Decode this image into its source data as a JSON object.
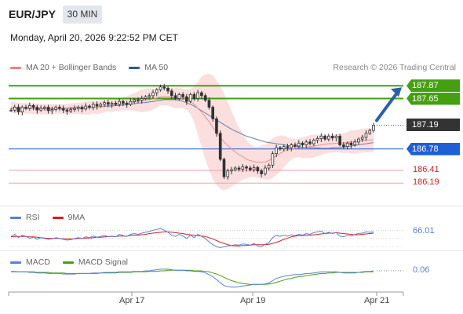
{
  "header": {
    "symbol": "EUR/JPY",
    "timeframe": "30 MIN",
    "datetime": "Monday, April 20, 2026 9:22:52 PM CET"
  },
  "legend": {
    "items": [
      {
        "label": "MA 20 + Bollinger Bands",
        "color": "#f08080"
      },
      {
        "label": "MA 50",
        "color": "#2c5a9a"
      }
    ],
    "credit": "Research © 2026 Trading Central"
  },
  "rsi_legend": {
    "items": [
      {
        "label": "RSI",
        "color": "#5b7fd6"
      },
      {
        "label": "9MA",
        "color": "#d62020"
      }
    ],
    "value_label": "66.01"
  },
  "macd_legend": {
    "items": [
      {
        "label": "MACD",
        "color": "#5b7fd6"
      },
      {
        "label": "MACD Signal",
        "color": "#44a010"
      }
    ],
    "value_label": "0.06"
  },
  "levels": {
    "r2": {
      "label": "187.87",
      "value": 187.87,
      "color": "#44a010"
    },
    "r1": {
      "label": "187.65",
      "value": 187.65,
      "color": "#44a010"
    },
    "last": {
      "label": "187.19",
      "value": 187.19,
      "color": "#333333"
    },
    "pivot": {
      "label": "186.78",
      "value": 186.78,
      "color": "#1f5fd6"
    },
    "s1": {
      "label": "186.41",
      "value": 186.41,
      "color": "#d62020"
    },
    "s2": {
      "label": "186.19",
      "value": 186.19,
      "color": "#d62020"
    }
  },
  "chart_data": {
    "type": "candlestick",
    "x_ticks": [
      "Apr 17",
      "Apr 19",
      "Apr 21"
    ],
    "price_axis": {
      "min": 185.8,
      "max": 188.05
    },
    "price_close": [
      187.45,
      187.5,
      187.42,
      187.5,
      187.48,
      187.53,
      187.5,
      187.45,
      187.48,
      187.5,
      187.44,
      187.46,
      187.5,
      187.48,
      187.45,
      187.43,
      187.46,
      187.48,
      187.5,
      187.47,
      187.52,
      187.5,
      187.55,
      187.52,
      187.55,
      187.58,
      187.55,
      187.57,
      187.55,
      187.6,
      187.57,
      187.55,
      187.6,
      187.63,
      187.62,
      187.65,
      187.68,
      187.7,
      187.75,
      187.8,
      187.85,
      187.83,
      187.78,
      187.7,
      187.65,
      187.72,
      187.68,
      187.6,
      187.72,
      187.65,
      187.75,
      187.7,
      187.62,
      187.5,
      187.3,
      187.05,
      186.6,
      186.3,
      186.4,
      186.42,
      186.45,
      186.43,
      186.47,
      186.45,
      186.42,
      186.46,
      186.4,
      186.35,
      186.45,
      186.5,
      186.7,
      186.8,
      186.78,
      186.82,
      186.8,
      186.85,
      186.83,
      186.88,
      186.85,
      186.9,
      186.87,
      186.93,
      186.96,
      187.0,
      186.95,
      187.0,
      186.97,
      187.0,
      186.85,
      186.82,
      186.88,
      186.85,
      186.9,
      186.95,
      186.98,
      187.05,
      187.1,
      187.19
    ],
    "ma20": [
      187.5,
      187.49,
      187.49,
      187.48,
      187.48,
      187.48,
      187.47,
      187.47,
      187.47,
      187.47,
      187.47,
      187.47,
      187.47,
      187.47,
      187.47,
      187.47,
      187.47,
      187.48,
      187.48,
      187.48,
      187.49,
      187.49,
      187.5,
      187.5,
      187.51,
      187.52,
      187.53,
      187.53,
      187.54,
      187.55,
      187.56,
      187.57,
      187.58,
      187.59,
      187.6,
      187.61,
      187.62,
      187.63,
      187.64,
      187.66,
      187.68,
      187.68,
      187.68,
      187.67,
      187.66,
      187.66,
      187.65,
      187.63,
      187.6,
      187.55,
      187.48,
      187.42,
      187.33,
      187.25,
      187.15,
      187.06,
      186.98,
      186.9,
      186.84,
      186.78,
      186.73,
      186.68,
      186.65,
      186.6,
      186.58,
      186.56,
      186.55,
      186.55,
      186.55,
      186.58,
      186.62,
      186.66,
      186.7,
      186.74,
      186.76,
      186.78,
      186.79,
      186.8,
      186.8,
      186.81,
      186.82,
      186.83,
      186.84,
      186.85,
      186.86,
      186.87,
      186.87,
      186.88,
      186.88,
      186.88,
      186.89,
      186.9,
      186.9,
      186.91,
      186.92,
      186.93,
      186.93,
      186.94
    ],
    "ma50": [
      187.48,
      187.48,
      187.48,
      187.48,
      187.48,
      187.48,
      187.48,
      187.48,
      187.48,
      187.48,
      187.48,
      187.48,
      187.48,
      187.48,
      187.48,
      187.48,
      187.49,
      187.49,
      187.49,
      187.49,
      187.5,
      187.5,
      187.5,
      187.5,
      187.51,
      187.51,
      187.52,
      187.52,
      187.53,
      187.53,
      187.54,
      187.54,
      187.55,
      187.56,
      187.57,
      187.58,
      187.58,
      187.59,
      187.6,
      187.61,
      187.62,
      187.63,
      187.63,
      187.63,
      187.63,
      187.62,
      187.6,
      187.58,
      187.55,
      187.52,
      187.48,
      187.44,
      187.4,
      187.36,
      187.32,
      187.28,
      187.24,
      187.2,
      187.16,
      187.12,
      187.09,
      187.06,
      187.03,
      187.0,
      186.98,
      186.96,
      186.94,
      186.92,
      186.9,
      186.89,
      186.88,
      186.87,
      186.86,
      186.85,
      186.84,
      186.83,
      186.82,
      186.82,
      186.81,
      186.81,
      186.8,
      186.8,
      186.8,
      186.79,
      186.79,
      186.79,
      186.8,
      186.8,
      186.8,
      186.81,
      186.82,
      186.83,
      186.84,
      186.85,
      186.86,
      186.87,
      186.88,
      186.89
    ],
    "rsi_axis": {
      "min": 25,
      "max": 80
    },
    "rsi": [
      55,
      60,
      52,
      58,
      55,
      50,
      53,
      48,
      52,
      50,
      48,
      49,
      52,
      50,
      48,
      46,
      47,
      50,
      52,
      50,
      54,
      52,
      56,
      53,
      55,
      58,
      54,
      56,
      54,
      60,
      57,
      55,
      60,
      62,
      60,
      63,
      65,
      67,
      70,
      72,
      74,
      70,
      65,
      58,
      55,
      60,
      56,
      50,
      58,
      52,
      60,
      55,
      50,
      42,
      35,
      30,
      28,
      30,
      32,
      33,
      35,
      34,
      37,
      36,
      34,
      38,
      32,
      30,
      36,
      40,
      52,
      58,
      55,
      58,
      56,
      59,
      57,
      60,
      58,
      62,
      60,
      64,
      66,
      68,
      62,
      65,
      62,
      64,
      56,
      54,
      58,
      56,
      60,
      62,
      63,
      66,
      65,
      66
    ],
    "rsi_ma": [
      54,
      55,
      55,
      55,
      55,
      54,
      54,
      53,
      52,
      51,
      50,
      50,
      50,
      50,
      49,
      49,
      49,
      49,
      50,
      50,
      51,
      51,
      52,
      53,
      53,
      54,
      55,
      55,
      55,
      56,
      56,
      56,
      57,
      58,
      58,
      59,
      60,
      62,
      63,
      64,
      65,
      66,
      66,
      65,
      64,
      63,
      62,
      60,
      59,
      58,
      57,
      56,
      55,
      52,
      49,
      45,
      41,
      38,
      35,
      33,
      32,
      32,
      33,
      33,
      34,
      35,
      35,
      35,
      35,
      36,
      38,
      41,
      44,
      48,
      51,
      54,
      56,
      57,
      57,
      58,
      58,
      59,
      60,
      61,
      62,
      63,
      63,
      64,
      63,
      62,
      61,
      60,
      59,
      59,
      60,
      61,
      62,
      63
    ],
    "macd": [
      0.05,
      0.05,
      0.04,
      0.04,
      0.04,
      0.03,
      0.03,
      0.02,
      0.02,
      0.02,
      0.01,
      0.01,
      0.01,
      0.01,
      0.0,
      0.0,
      0.0,
      0.0,
      0.01,
      0.01,
      0.01,
      0.01,
      0.02,
      0.02,
      0.02,
      0.03,
      0.03,
      0.03,
      0.03,
      0.04,
      0.04,
      0.04,
      0.04,
      0.05,
      0.05,
      0.05,
      0.06,
      0.06,
      0.07,
      0.08,
      0.09,
      0.09,
      0.09,
      0.08,
      0.07,
      0.07,
      0.07,
      0.06,
      0.06,
      0.05,
      0.05,
      0.04,
      0.02,
      -0.01,
      -0.05,
      -0.1,
      -0.16,
      -0.21,
      -0.23,
      -0.24,
      -0.24,
      -0.23,
      -0.22,
      -0.21,
      -0.2,
      -0.19,
      -0.19,
      -0.19,
      -0.18,
      -0.16,
      -0.12,
      -0.08,
      -0.06,
      -0.04,
      -0.03,
      -0.02,
      -0.01,
      -0.01,
      0.0,
      0.01,
      0.01,
      0.02,
      0.03,
      0.04,
      0.04,
      0.04,
      0.04,
      0.04,
      0.03,
      0.02,
      0.02,
      0.02,
      0.02,
      0.03,
      0.04,
      0.05,
      0.05,
      0.06
    ],
    "macd_signal": [
      0.04,
      0.04,
      0.04,
      0.04,
      0.04,
      0.04,
      0.04,
      0.03,
      0.03,
      0.03,
      0.03,
      0.02,
      0.02,
      0.02,
      0.02,
      0.01,
      0.01,
      0.01,
      0.01,
      0.01,
      0.01,
      0.01,
      0.01,
      0.01,
      0.02,
      0.02,
      0.02,
      0.02,
      0.02,
      0.03,
      0.03,
      0.03,
      0.03,
      0.04,
      0.04,
      0.04,
      0.04,
      0.05,
      0.05,
      0.05,
      0.06,
      0.06,
      0.07,
      0.07,
      0.07,
      0.07,
      0.07,
      0.07,
      0.07,
      0.06,
      0.06,
      0.06,
      0.05,
      0.04,
      0.02,
      0.0,
      -0.03,
      -0.06,
      -0.09,
      -0.12,
      -0.14,
      -0.16,
      -0.17,
      -0.18,
      -0.19,
      -0.19,
      -0.19,
      -0.19,
      -0.19,
      -0.18,
      -0.17,
      -0.15,
      -0.13,
      -0.11,
      -0.09,
      -0.08,
      -0.06,
      -0.05,
      -0.04,
      -0.03,
      -0.02,
      -0.01,
      0.0,
      0.01,
      0.01,
      0.02,
      0.02,
      0.03,
      0.03,
      0.03,
      0.03,
      0.03,
      0.03,
      0.03,
      0.03,
      0.04,
      0.04,
      0.04
    ],
    "macd_axis": {
      "min": -0.3,
      "max": 0.16
    }
  }
}
